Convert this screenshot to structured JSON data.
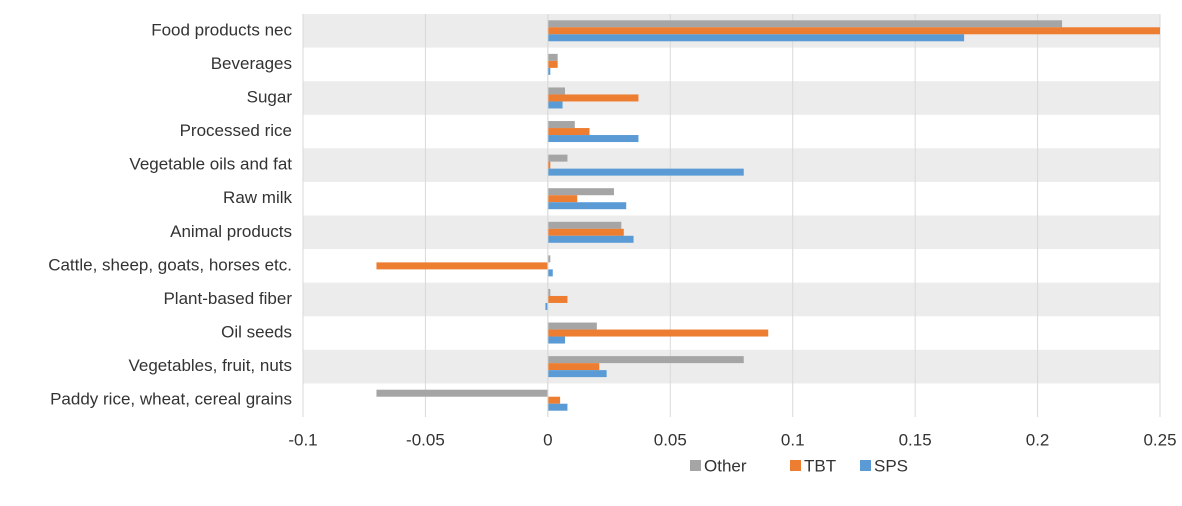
{
  "chart_data": {
    "type": "barh",
    "categories": [
      "Food products nec",
      "Beverages",
      "Sugar",
      "Processed rice",
      "Vegetable oils and fat",
      "Raw milk",
      "Animal products",
      "Cattle, sheep, goats, horses etc.",
      "Plant-based fiber",
      "Oil seeds",
      "Vegetables, fruit, nuts",
      "Paddy rice, wheat, cereal grains"
    ],
    "series": [
      {
        "name": "Other",
        "color": "#a5a5a5",
        "values": [
          0.21,
          0.004,
          0.007,
          0.011,
          0.008,
          0.027,
          0.03,
          0.001,
          0.001,
          0.02,
          0.08,
          -0.07
        ]
      },
      {
        "name": "TBT",
        "color": "#ed7d31",
        "values": [
          0.25,
          0.004,
          0.037,
          0.017,
          0.001,
          0.012,
          0.031,
          -0.07,
          0.008,
          0.09,
          0.021,
          0.005
        ]
      },
      {
        "name": "SPS",
        "color": "#5b9bd5",
        "values": [
          0.17,
          0.001,
          0.006,
          0.037,
          0.08,
          0.032,
          0.035,
          0.002,
          -0.001,
          0.007,
          0.024,
          0.008
        ]
      }
    ],
    "xlim": [
      -0.1,
      0.25
    ],
    "xticks": [
      -0.1,
      -0.05,
      0,
      0.05,
      0.1,
      0.15,
      0.2,
      0.25
    ],
    "grid": true,
    "legend": "bottom"
  }
}
